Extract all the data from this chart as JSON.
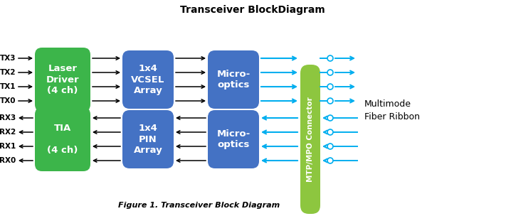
{
  "title": "Transceiver BlockDiagram",
  "caption": "Figure 1. Transceiver Block Diagram",
  "green_color": "#3CB54A",
  "blue_color": "#4472C4",
  "lime_color": "#8DC63F",
  "cyan_color": "#00AEEF",
  "black_color": "#000000",
  "white_color": "#FFFFFF",
  "bg_color": "#FFFFFF",
  "tx_labels": [
    "TX3",
    "TX2",
    "TX1",
    "TX0"
  ],
  "rx_labels": [
    "RX3",
    "RX2",
    "RX1",
    "RX0"
  ],
  "box1_tx": "Laser\nDriver\n(4 ch)",
  "box2_tx": "1x4\nVCSEL\nArray",
  "box3_tx": "Micro-\noptics",
  "connector_text": "MTP/MPO Connector",
  "box2_rx": "1x4\nPIN\nArray",
  "box3_rx": "Micro-\noptics",
  "box1_rx": "TIA\n\n(4 ch)",
  "multimode_line1": "Multimode",
  "multimode_line2": "Fiber Ribbon"
}
